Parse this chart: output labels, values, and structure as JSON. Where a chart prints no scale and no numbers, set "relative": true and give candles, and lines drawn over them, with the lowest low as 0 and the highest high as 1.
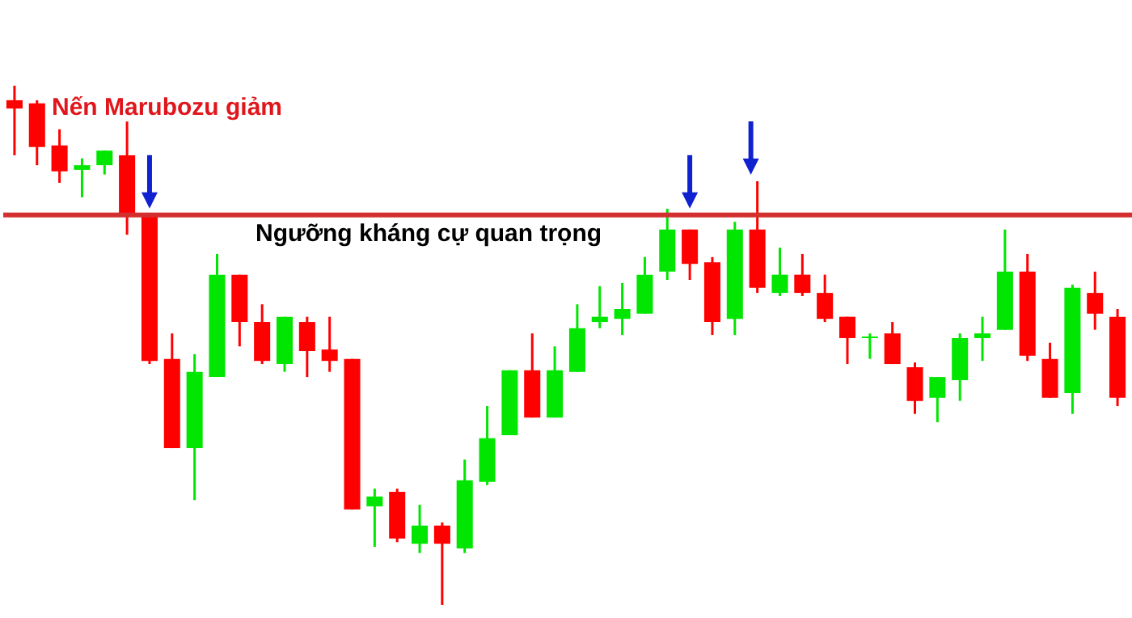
{
  "chart_data": {
    "type": "candlestick",
    "relative": true,
    "categories": [
      null,
      null,
      null,
      null,
      null,
      null,
      null,
      null,
      null,
      null,
      null,
      null,
      null,
      null,
      null,
      null,
      null,
      null,
      null,
      null,
      null,
      null,
      null,
      null,
      null,
      null,
      null,
      null,
      null,
      null,
      null,
      null,
      null,
      null,
      null,
      null,
      null,
      null,
      null,
      null,
      null,
      null,
      null,
      null,
      null,
      null,
      null,
      null,
      null,
      null
    ],
    "ohlc": [
      [
        0.972,
        1,
        0.866,
        0.956
      ],
      [
        0.966,
        0.972,
        0.847,
        0.882
      ],
      [
        0.885,
        0.916,
        0.813,
        0.835
      ],
      [
        0.838,
        0.86,
        0.785,
        0.847
      ],
      [
        0.847,
        0.875,
        0.829,
        0.875
      ],
      [
        0.866,
        0.931,
        0.713,
        0.751
      ],
      [
        0.751,
        0.751,
        0.464,
        0.47
      ],
      [
        0.474,
        0.523,
        0.302,
        0.302
      ],
      [
        0.302,
        0.483,
        0.202,
        0.449
      ],
      [
        0.439,
        0.676,
        0.439,
        0.636
      ],
      [
        0.636,
        0.636,
        0.498,
        0.545
      ],
      [
        0.545,
        0.579,
        0.464,
        0.47
      ],
      [
        0.464,
        0.555,
        0.449,
        0.555
      ],
      [
        0.545,
        0.555,
        0.439,
        0.489
      ],
      [
        0.492,
        0.555,
        0.449,
        0.47
      ],
      [
        0.474,
        0.474,
        0.184,
        0.184
      ],
      [
        0.19,
        0.224,
        0.112,
        0.209
      ],
      [
        0.218,
        0.224,
        0.121,
        0.128
      ],
      [
        0.118,
        0.193,
        0.1,
        0.153
      ],
      [
        0.153,
        0.159,
        0,
        0.118
      ],
      [
        0.109,
        0.28,
        0.1,
        0.24
      ],
      [
        0.237,
        0.383,
        0.231,
        0.321
      ],
      [
        0.327,
        0.452,
        0.327,
        0.452
      ],
      [
        0.452,
        0.523,
        0.361,
        0.361
      ],
      [
        0.361,
        0.498,
        0.361,
        0.452
      ],
      [
        0.449,
        0.579,
        0.449,
        0.533
      ],
      [
        0.545,
        0.614,
        0.533,
        0.555
      ],
      [
        0.551,
        0.62,
        0.52,
        0.57
      ],
      [
        0.561,
        0.67,
        0.561,
        0.636
      ],
      [
        0.642,
        0.763,
        0.626,
        0.723
      ],
      [
        0.723,
        0.723,
        0.626,
        0.657
      ],
      [
        0.66,
        0.67,
        0.52,
        0.545
      ],
      [
        0.551,
        0.738,
        0.52,
        0.723
      ],
      [
        0.723,
        0.816,
        0.601,
        0.611
      ],
      [
        0.601,
        0.688,
        0.595,
        0.636
      ],
      [
        0.636,
        0.676,
        0.595,
        0.601
      ],
      [
        0.601,
        0.636,
        0.545,
        0.551
      ],
      [
        0.555,
        0.555,
        0.464,
        0.514
      ],
      [
        0.514,
        0.523,
        0.474,
        0.517
      ],
      [
        0.523,
        0.545,
        0.464,
        0.464
      ],
      [
        0.458,
        0.467,
        0.368,
        0.393
      ],
      [
        0.399,
        0.439,
        0.352,
        0.439
      ],
      [
        0.433,
        0.523,
        0.393,
        0.514
      ],
      [
        0.514,
        0.555,
        0.47,
        0.523
      ],
      [
        0.53,
        0.723,
        0.53,
        0.642
      ],
      [
        0.642,
        0.676,
        0.47,
        0.48
      ],
      [
        0.474,
        0.505,
        0.399,
        0.399
      ],
      [
        0.408,
        0.617,
        0.368,
        0.611
      ],
      [
        0.601,
        0.642,
        0.53,
        0.561
      ],
      [
        0.555,
        0.57,
        0.383,
        0.399
      ]
    ],
    "colors": [
      "#ff0000",
      "#ff0000",
      "#ff0000",
      "#00e600",
      "#00e600",
      "#ff0000",
      "#ff0000",
      "#ff0000",
      "#00e600",
      "#00e600",
      "#ff0000",
      "#ff0000",
      "#00e600",
      "#ff0000",
      "#ff0000",
      "#ff0000",
      "#00e600",
      "#ff0000",
      "#00e600",
      "#ff0000",
      "#00e600",
      "#00e600",
      "#00e600",
      "#ff0000",
      "#00e600",
      "#00e600",
      "#00e600",
      "#00e600",
      "#00e600",
      "#00e600",
      "#ff0000",
      "#ff0000",
      "#00e600",
      "#ff0000",
      "#00e600",
      "#ff0000",
      "#ff0000",
      "#ff0000",
      "#00e600",
      "#ff0000",
      "#ff0000",
      "#00e600",
      "#00e600",
      "#00e600",
      "#00e600",
      "#ff0000",
      "#ff0000",
      "#00e600",
      "#ff0000",
      "#ff0000"
    ],
    "ref_lines": [
      {
        "axis": "y",
        "value": 0.751,
        "label": "Ngưỡng kháng cự quan trọng",
        "color": "#d32f2f"
      }
    ],
    "annotations": [
      "Nến Marubozu giảm"
    ]
  }
}
